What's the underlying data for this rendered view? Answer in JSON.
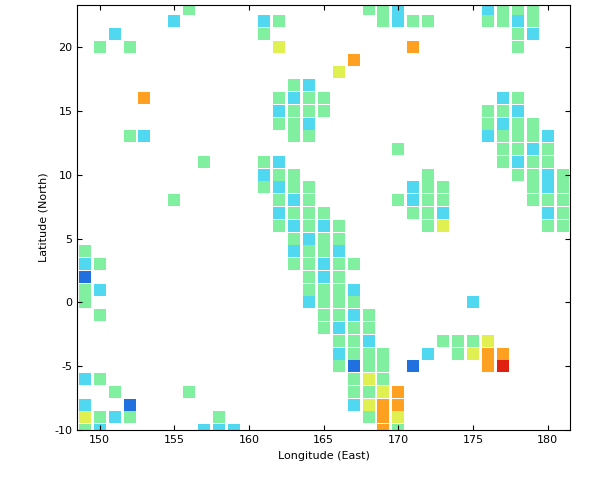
{
  "chart_data": {
    "type": "scatter",
    "x_label": "Longitude (East)",
    "y_label": "Latitude (North)",
    "xlim": [
      148.5,
      181.5
    ],
    "ylim": [
      -10,
      23.3
    ],
    "xticks": [
      150,
      155,
      160,
      165,
      170,
      175,
      180
    ],
    "yticks": [
      -10,
      -5,
      0,
      5,
      10,
      15,
      20
    ],
    "grid": false,
    "marker": "s",
    "series": [
      {
        "color": "#50d8f0",
        "x": [
          161,
          164,
          163,
          162,
          164,
          162,
          161,
          162,
          163,
          162,
          163,
          165,
          164,
          163,
          166,
          165,
          165,
          167,
          164,
          167,
          166,
          168,
          166,
          167,
          177,
          178,
          177,
          176,
          180,
          179,
          178,
          180,
          180,
          180,
          171,
          171,
          173,
          172,
          149,
          150,
          149,
          149,
          151,
          150,
          157,
          158,
          159,
          170,
          170,
          178,
          176,
          179,
          155,
          151,
          153,
          175
        ],
        "y": [
          22,
          17,
          16,
          15,
          14,
          11,
          10,
          9,
          8,
          7,
          6,
          6,
          5,
          4,
          4,
          3,
          2,
          1,
          0,
          -1,
          -2,
          -3,
          -4,
          -8,
          16,
          15,
          14,
          13,
          13,
          12,
          11,
          10,
          9,
          7,
          9,
          8,
          7,
          -4,
          3,
          1,
          -6,
          -8,
          -9,
          -10,
          -10,
          -10,
          -10,
          22,
          23,
          22,
          23,
          21,
          22,
          21,
          13,
          0
        ]
      },
      {
        "color": "#80f0a0",
        "x": [
          162,
          161,
          163,
          162,
          164,
          165,
          163,
          164,
          165,
          162,
          163,
          163,
          164,
          161,
          162,
          163,
          161,
          163,
          164,
          162,
          164,
          163,
          164,
          165,
          162,
          164,
          166,
          163,
          165,
          166,
          164,
          165,
          163,
          164,
          166,
          167,
          164,
          166,
          164,
          165,
          166,
          165,
          166,
          167,
          165,
          166,
          168,
          165,
          167,
          168,
          166,
          167,
          167,
          168,
          169,
          166,
          168,
          169,
          167,
          169,
          167,
          168,
          168,
          170,
          178,
          176,
          177,
          176,
          178,
          179,
          177,
          178,
          179,
          177,
          178,
          180,
          177,
          179,
          180,
          178,
          179,
          181,
          179,
          181,
          179,
          180,
          181,
          181,
          180,
          181,
          172,
          172,
          173,
          170,
          172,
          173,
          171,
          172,
          172,
          173,
          174,
          175,
          174,
          149,
          150,
          149,
          149,
          150,
          150,
          151,
          150,
          152,
          149,
          156,
          158,
          169,
          171,
          172,
          168,
          169,
          176,
          177,
          179,
          177,
          178,
          179,
          178,
          178,
          156,
          150,
          152,
          152,
          155,
          157,
          170
        ],
        "y": [
          22,
          21,
          17,
          16,
          16,
          16,
          15,
          15,
          15,
          14,
          14,
          13,
          13,
          11,
          10,
          10,
          9,
          9,
          9,
          8,
          8,
          7,
          7,
          7,
          6,
          6,
          6,
          5,
          5,
          5,
          4,
          4,
          3,
          3,
          3,
          3,
          2,
          2,
          1,
          1,
          1,
          0,
          0,
          0,
          -1,
          -1,
          -1,
          -2,
          -2,
          -2,
          -3,
          -3,
          -4,
          -4,
          -4,
          -5,
          -5,
          -5,
          -6,
          -6,
          -7,
          -7,
          -9,
          -10,
          16,
          15,
          15,
          14,
          14,
          14,
          13,
          13,
          13,
          12,
          12,
          12,
          11,
          11,
          11,
          10,
          10,
          10,
          9,
          9,
          8,
          8,
          8,
          7,
          6,
          6,
          10,
          9,
          9,
          8,
          8,
          8,
          7,
          7,
          6,
          -3,
          -3,
          -3,
          -4,
          4,
          3,
          1,
          0,
          -1,
          -6,
          -7,
          -9,
          -9,
          -10,
          -7,
          -9,
          22,
          22,
          22,
          23,
          23,
          22,
          22,
          22,
          23,
          23,
          23,
          21,
          20,
          23,
          20,
          20,
          13,
          8,
          11,
          12
        ]
      },
      {
        "color": "#e0f050",
        "x": [
          162,
          168,
          169,
          168,
          170,
          173,
          176,
          175,
          149,
          166
        ],
        "y": [
          20,
          -6,
          -7,
          -8,
          -9,
          6,
          -3,
          -4,
          -9,
          18
        ]
      },
      {
        "color": "#ffa020",
        "x": [
          170,
          169,
          170,
          169,
          169,
          176,
          177,
          176,
          167,
          171,
          153
        ],
        "y": [
          -7,
          -8,
          -8,
          -9,
          -10,
          -4,
          -4,
          -5,
          19,
          20,
          16
        ]
      },
      {
        "color": "#e02010",
        "x": [
          177
        ],
        "y": [
          -5
        ]
      },
      {
        "color": "#2070e0",
        "x": [
          167,
          171,
          149,
          152
        ],
        "y": [
          -5,
          -5,
          2,
          -8
        ]
      }
    ]
  }
}
